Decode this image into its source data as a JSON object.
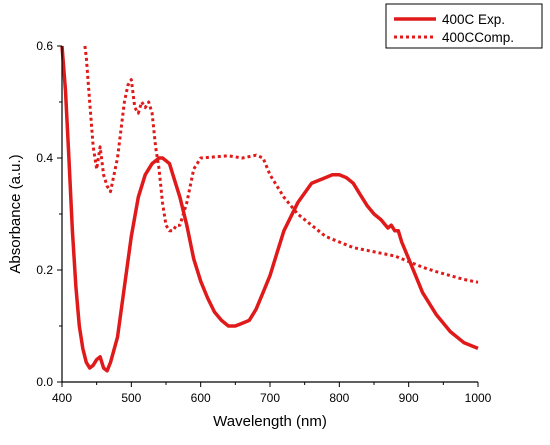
{
  "chart_data": {
    "type": "line",
    "xlabel": "Wavelength (nm)",
    "ylabel": "Absorbance (a.u.)",
    "xlim": [
      400,
      1000
    ],
    "ylim": [
      0,
      0.6
    ],
    "x_ticks": [
      400,
      500,
      600,
      700,
      800,
      900,
      1000
    ],
    "y_ticks": [
      0.0,
      0.2,
      0.4,
      0.6
    ],
    "x_tick_labels": [
      "400",
      "500",
      "600",
      "700",
      "800",
      "900",
      "1000"
    ],
    "y_tick_labels": [
      "0.0",
      "0.2",
      "0.4",
      "0.6"
    ],
    "grid": false,
    "legend_position": "top-right",
    "line_color": "#e01a1a",
    "series": [
      {
        "name": "400C Exp.",
        "style": "solid",
        "x": [
          400,
          405,
          410,
          415,
          420,
          425,
          430,
          435,
          440,
          445,
          450,
          455,
          460,
          465,
          470,
          480,
          490,
          500,
          510,
          520,
          530,
          540,
          545,
          550,
          555,
          560,
          570,
          580,
          590,
          600,
          610,
          620,
          630,
          640,
          650,
          660,
          670,
          680,
          690,
          700,
          710,
          720,
          740,
          760,
          780,
          790,
          800,
          810,
          820,
          830,
          840,
          850,
          860,
          870,
          875,
          880,
          885,
          890,
          900,
          910,
          920,
          940,
          960,
          980,
          1000
        ],
        "y": [
          0.6,
          0.52,
          0.4,
          0.27,
          0.17,
          0.1,
          0.06,
          0.035,
          0.025,
          0.03,
          0.04,
          0.045,
          0.025,
          0.02,
          0.035,
          0.08,
          0.17,
          0.26,
          0.33,
          0.37,
          0.39,
          0.4,
          0.4,
          0.395,
          0.39,
          0.37,
          0.33,
          0.28,
          0.22,
          0.18,
          0.15,
          0.125,
          0.11,
          0.1,
          0.1,
          0.105,
          0.11,
          0.13,
          0.16,
          0.19,
          0.23,
          0.27,
          0.32,
          0.355,
          0.365,
          0.37,
          0.37,
          0.365,
          0.355,
          0.335,
          0.315,
          0.3,
          0.29,
          0.275,
          0.28,
          0.27,
          0.27,
          0.25,
          0.22,
          0.19,
          0.16,
          0.12,
          0.09,
          0.07,
          0.06
        ]
      },
      {
        "name": "400CComp.",
        "style": "dotted",
        "x": [
          433,
          435,
          440,
          445,
          450,
          455,
          460,
          465,
          470,
          480,
          490,
          495,
          500,
          505,
          510,
          515,
          520,
          525,
          530,
          535,
          540,
          545,
          550,
          555,
          560,
          565,
          570,
          575,
          580,
          590,
          600,
          620,
          640,
          660,
          680,
          690,
          700,
          720,
          740,
          760,
          780,
          800,
          820,
          840,
          860,
          880,
          900,
          920,
          940,
          960,
          980,
          1000
        ],
        "y": [
          0.6,
          0.58,
          0.5,
          0.42,
          0.38,
          0.42,
          0.37,
          0.35,
          0.34,
          0.4,
          0.5,
          0.53,
          0.54,
          0.49,
          0.48,
          0.5,
          0.49,
          0.5,
          0.48,
          0.42,
          0.38,
          0.32,
          0.28,
          0.27,
          0.27,
          0.28,
          0.28,
          0.3,
          0.32,
          0.38,
          0.4,
          0.402,
          0.404,
          0.4,
          0.405,
          0.4,
          0.37,
          0.33,
          0.3,
          0.28,
          0.26,
          0.25,
          0.24,
          0.235,
          0.23,
          0.225,
          0.215,
          0.205,
          0.197,
          0.19,
          0.183,
          0.178
        ]
      }
    ]
  }
}
